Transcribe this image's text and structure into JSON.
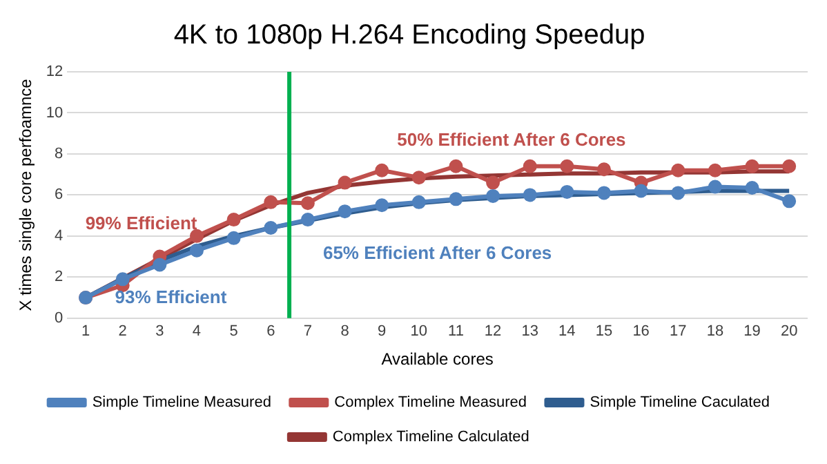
{
  "chart_data": {
    "type": "line",
    "title": "4K to 1080p H.264 Encoding Speedup",
    "xlabel": "Available cores",
    "ylabel": "X times single core perfoamnce",
    "x": [
      1,
      2,
      3,
      4,
      5,
      6,
      7,
      8,
      9,
      10,
      11,
      12,
      13,
      14,
      15,
      16,
      17,
      18,
      19,
      20
    ],
    "xlim": [
      0.5,
      20.5
    ],
    "xticks": [
      1,
      2,
      3,
      4,
      5,
      6,
      7,
      8,
      9,
      10,
      11,
      12,
      13,
      14,
      15,
      16,
      17,
      18,
      19,
      20
    ],
    "ylim": [
      0,
      12
    ],
    "yticks": [
      0,
      2,
      4,
      6,
      8,
      10,
      12
    ],
    "grid": "y",
    "legend": "bottom",
    "series": [
      {
        "name": "Simple Timeline Measured",
        "color": "#4f81bd",
        "marker": "circle",
        "values": [
          1,
          1.9,
          2.6,
          3.3,
          3.9,
          4.4,
          4.8,
          5.2,
          5.5,
          5.65,
          5.8,
          5.95,
          6.0,
          6.15,
          6.1,
          6.2,
          6.1,
          6.4,
          6.35,
          5.7
        ]
      },
      {
        "name": "Complex Timeline Measured",
        "color": "#c0504d",
        "marker": "circle",
        "values": [
          1,
          1.6,
          3.0,
          4.0,
          4.8,
          5.65,
          5.6,
          6.6,
          7.2,
          6.85,
          7.4,
          6.6,
          7.4,
          7.4,
          7.25,
          6.6,
          7.2,
          7.2,
          7.4,
          7.4
        ]
      },
      {
        "name": "Simple Timeline Caculated",
        "color": "#2f5d8f",
        "marker": "none",
        "values": [
          1,
          1.93,
          2.8,
          3.5,
          4.0,
          4.4,
          4.75,
          5.1,
          5.4,
          5.6,
          5.75,
          5.85,
          5.95,
          6.0,
          6.05,
          6.1,
          6.15,
          6.2,
          6.2,
          6.2
        ]
      },
      {
        "name": "Complex Timeline Calculated",
        "color": "#943634",
        "marker": "none",
        "values": [
          1,
          1.95,
          2.9,
          3.85,
          4.75,
          5.5,
          6.1,
          6.45,
          6.65,
          6.8,
          6.9,
          6.95,
          7.0,
          7.05,
          7.05,
          7.1,
          7.1,
          7.1,
          7.15,
          7.15
        ]
      }
    ],
    "ref_lines": [
      {
        "axis": "x",
        "value": 6.5,
        "color": "#00b050"
      }
    ],
    "annotations": [
      "99% Efficient",
      "93% Efficient",
      "65% Efficient After 6 Cores",
      "50% Efficient After 6 Cores"
    ]
  }
}
